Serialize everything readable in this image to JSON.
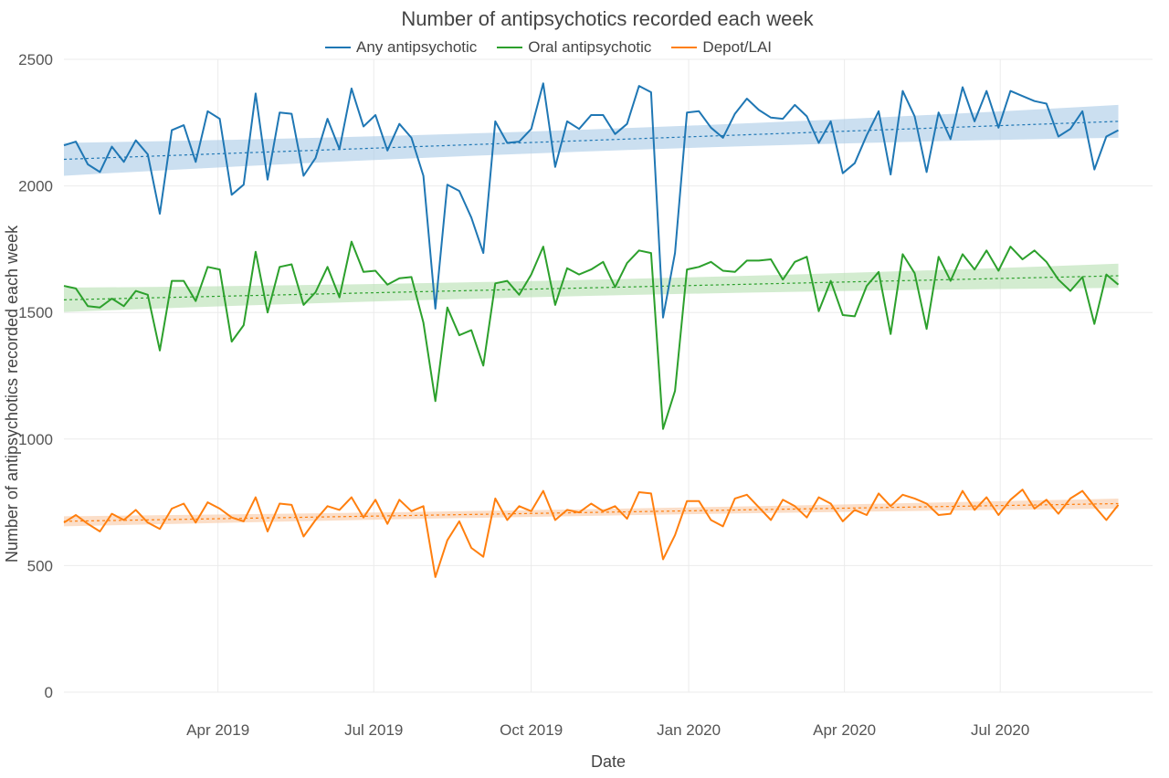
{
  "chart_data": {
    "type": "line",
    "title": "Number of antipsychotics recorded each week",
    "xlabel": "Date",
    "ylabel": "Number of antipsychotics recorded each week",
    "x_tick_labels": [
      "Apr 2019",
      "Jul 2019",
      "Oct 2019",
      "Jan 2020",
      "Apr 2020",
      "Jul 2020"
    ],
    "y_ticks": [
      0,
      500,
      1000,
      1500,
      2000,
      2500
    ],
    "ylim": [
      0,
      2500
    ],
    "xlim": [
      "2019-01-01",
      "2020-09-28"
    ],
    "week_dates_start": "2019-01-01",
    "week_step_days": 7,
    "grid": true,
    "legend_position": "top",
    "series": [
      {
        "name": "Any antipsychotic",
        "color": "#1f77b4",
        "band_color": "#a9c9e6",
        "trend": {
          "start": 2105,
          "end": 2255,
          "band_half_width": 65
        },
        "values": [
          2160,
          2175,
          2085,
          2055,
          2155,
          2095,
          2180,
          2125,
          1890,
          2220,
          2240,
          2095,
          2295,
          2265,
          1965,
          2005,
          2365,
          2025,
          2290,
          2285,
          2040,
          2110,
          2265,
          2145,
          2385,
          2235,
          2280,
          2140,
          2245,
          2190,
          2040,
          1515,
          2005,
          1980,
          1875,
          1735,
          2255,
          2170,
          2175,
          2225,
          2405,
          2075,
          2255,
          2225,
          2280,
          2280,
          2205,
          2245,
          2395,
          2370,
          1480,
          1735,
          2290,
          2295,
          2230,
          2190,
          2285,
          2345,
          2300,
          2270,
          2265,
          2320,
          2275,
          2170,
          2255,
          2050,
          2090,
          2200,
          2295,
          2045,
          2375,
          2275,
          2055,
          2290,
          2185,
          2390,
          2255,
          2375,
          2230,
          2375,
          2355,
          2335,
          2325,
          2195,
          2225,
          2295,
          2065,
          2195,
          2220
        ]
      },
      {
        "name": "Oral antipsychotic",
        "color": "#2ca02c",
        "band_color": "#b5dfb0",
        "trend": {
          "start": 1550,
          "end": 1645,
          "band_half_width": 48
        },
        "values": [
          1605,
          1595,
          1525,
          1520,
          1555,
          1525,
          1585,
          1570,
          1350,
          1625,
          1625,
          1545,
          1680,
          1670,
          1385,
          1450,
          1740,
          1500,
          1680,
          1690,
          1530,
          1580,
          1680,
          1560,
          1780,
          1660,
          1665,
          1610,
          1635,
          1640,
          1460,
          1150,
          1520,
          1410,
          1430,
          1290,
          1615,
          1625,
          1570,
          1650,
          1760,
          1530,
          1675,
          1650,
          1670,
          1700,
          1600,
          1695,
          1745,
          1735,
          1040,
          1190,
          1670,
          1680,
          1700,
          1665,
          1660,
          1705,
          1705,
          1710,
          1630,
          1700,
          1720,
          1505,
          1625,
          1490,
          1485,
          1605,
          1660,
          1415,
          1730,
          1655,
          1435,
          1720,
          1625,
          1730,
          1670,
          1745,
          1665,
          1760,
          1710,
          1745,
          1700,
          1630,
          1585,
          1640,
          1455,
          1650,
          1610
        ]
      },
      {
        "name": "Depot/LAI",
        "color": "#ff7f0e",
        "band_color": "#f9c8a4",
        "trend": {
          "start": 675,
          "end": 745,
          "band_half_width": 20
        },
        "values": [
          670,
          700,
          665,
          635,
          705,
          680,
          720,
          670,
          645,
          725,
          745,
          670,
          750,
          725,
          690,
          675,
          770,
          635,
          745,
          740,
          615,
          680,
          735,
          720,
          770,
          690,
          760,
          665,
          760,
          715,
          735,
          455,
          600,
          675,
          570,
          535,
          765,
          680,
          735,
          715,
          795,
          680,
          720,
          710,
          745,
          715,
          735,
          685,
          790,
          785,
          525,
          620,
          755,
          755,
          680,
          655,
          765,
          780,
          730,
          680,
          760,
          735,
          690,
          770,
          745,
          675,
          720,
          700,
          785,
          735,
          780,
          765,
          745,
          700,
          705,
          795,
          720,
          770,
          700,
          760,
          800,
          725,
          760,
          705,
          765,
          795,
          735,
          680,
          740
        ]
      }
    ]
  }
}
